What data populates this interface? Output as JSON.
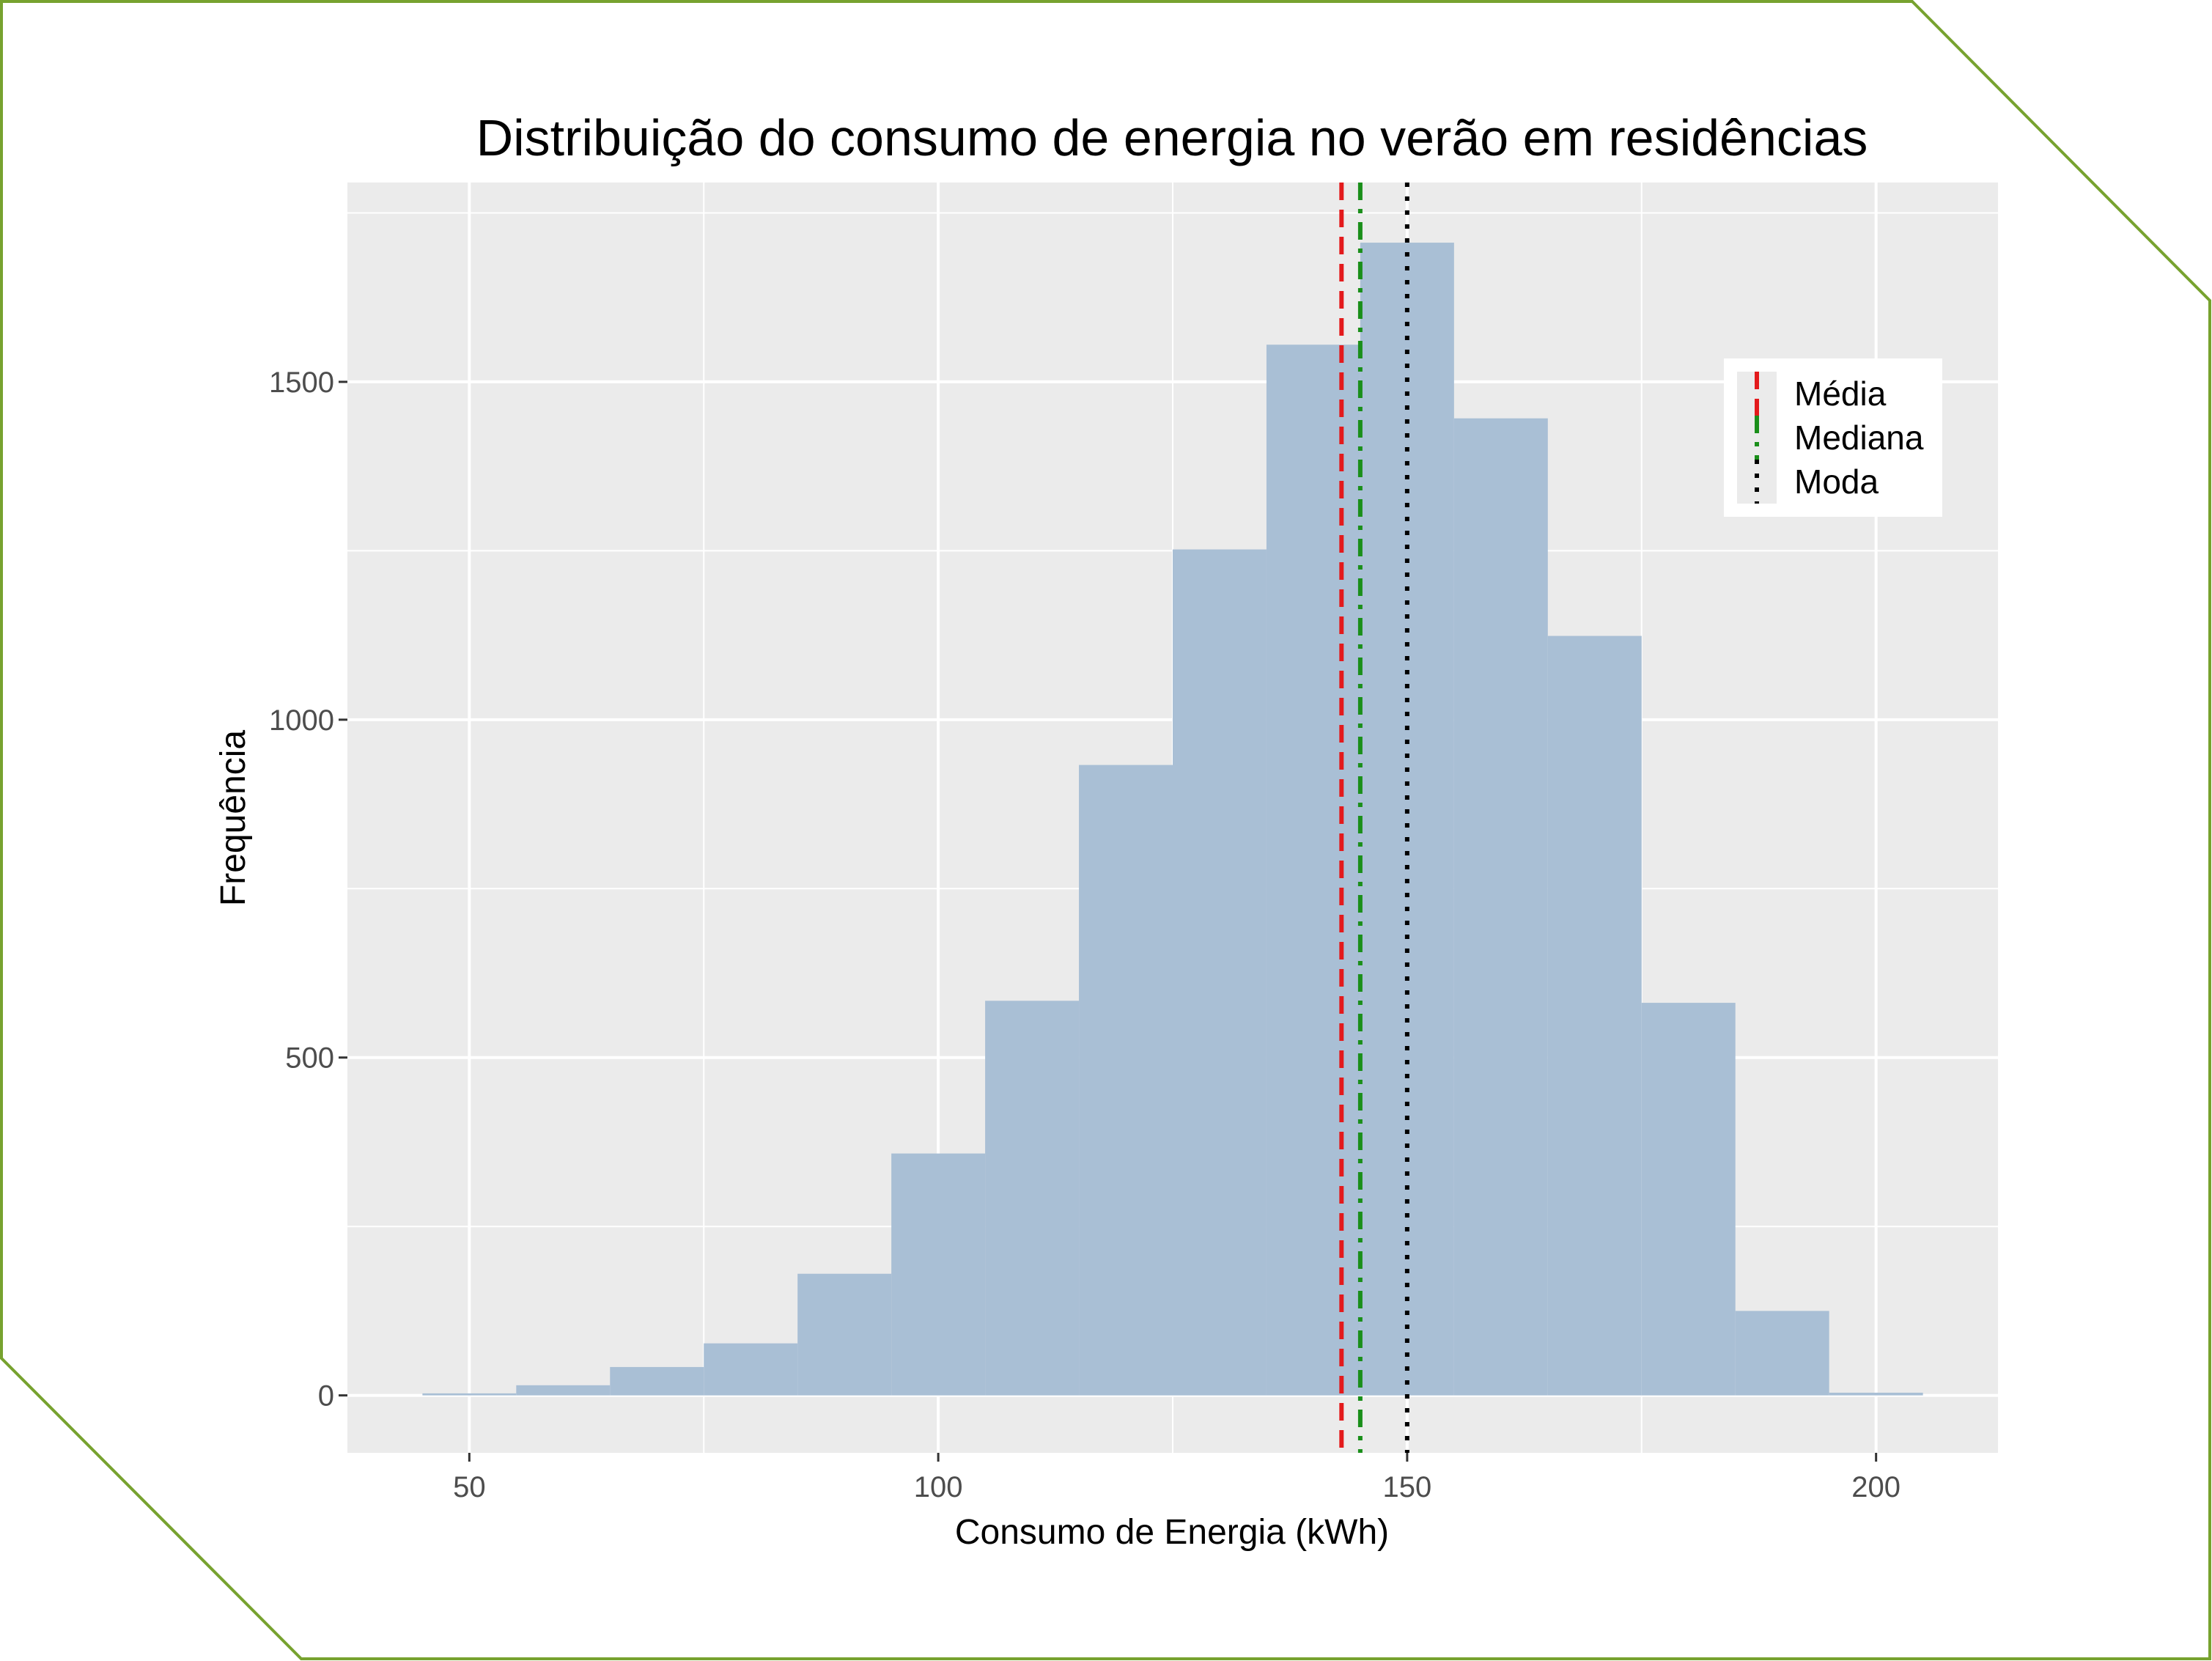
{
  "colors": {
    "frame": "#77a22f",
    "panel_background": "#ebebeb",
    "grid": "#ffffff",
    "bar_fill": "#a9bfd5",
    "mean_line": "#e31a1c",
    "median_line": "#1a8f1a",
    "mode_line": "#000000"
  },
  "chart_data": {
    "type": "histogram",
    "title": "Distribuição do consumo de energia no verão em residências",
    "xlabel": "Consumo de Energia (kWh)",
    "ylabel": "Frequência",
    "xlim": [
      37,
      213
    ],
    "ylim": [
      -85,
      1795
    ],
    "x_ticks": [
      50,
      100,
      150,
      200
    ],
    "y_ticks": [
      0,
      500,
      1000,
      1500
    ],
    "grid": true,
    "bin_width": 10,
    "bins": [
      {
        "start": 45,
        "end": 55,
        "count": 3
      },
      {
        "start": 55,
        "end": 65,
        "count": 15
      },
      {
        "start": 65,
        "end": 75,
        "count": 42
      },
      {
        "start": 75,
        "end": 85,
        "count": 77
      },
      {
        "start": 85,
        "end": 95,
        "count": 180
      },
      {
        "start": 95,
        "end": 105,
        "count": 358
      },
      {
        "start": 105,
        "end": 115,
        "count": 584
      },
      {
        "start": 115,
        "end": 125,
        "count": 933
      },
      {
        "start": 125,
        "end": 135,
        "count": 1252
      },
      {
        "start": 135,
        "end": 145,
        "count": 1555
      },
      {
        "start": 145,
        "end": 155,
        "count": 1706
      },
      {
        "start": 155,
        "end": 165,
        "count": 1446
      },
      {
        "start": 165,
        "end": 175,
        "count": 1124
      },
      {
        "start": 175,
        "end": 185,
        "count": 581
      },
      {
        "start": 185,
        "end": 195,
        "count": 125
      },
      {
        "start": 195,
        "end": 205,
        "count": 4
      }
    ],
    "reference_lines": [
      {
        "name": "Média",
        "value": 143,
        "style": "dashed"
      },
      {
        "name": "Mediana",
        "value": 145,
        "style": "dashdot"
      },
      {
        "name": "Moda",
        "value": 150,
        "style": "dotted"
      }
    ],
    "legend_position": "top-right"
  }
}
